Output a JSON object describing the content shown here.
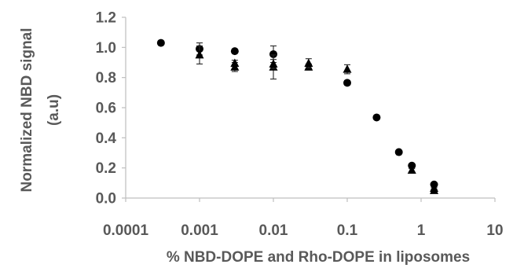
{
  "chart_data": {
    "type": "scatter",
    "title": "",
    "xlabel": "% NBD-DOPE and Rho-DOPE in liposomes",
    "ylabel_lines": [
      "Normalized NBD signal",
      "(a.u)"
    ],
    "xscale": "log",
    "xlim": [
      0.0001,
      10
    ],
    "ylim": [
      0,
      1.2
    ],
    "x_tick_values": [
      0.0001,
      0.001,
      0.01,
      0.1,
      1,
      10
    ],
    "x_tick_labels": [
      "0.0001",
      "0.001",
      "0.01",
      "0.1",
      "1",
      "10"
    ],
    "y_tick_values": [
      0,
      0.2,
      0.4,
      0.6,
      0.8,
      1.0,
      1.2
    ],
    "y_tick_labels": [
      "0.0",
      "0.2",
      "0.4",
      "0.6",
      "0.8",
      "1.0",
      "1.2"
    ],
    "grid": false,
    "legend": "none",
    "series": [
      {
        "marker": "circle",
        "color": "#000000",
        "points": [
          {
            "x": 0.0003,
            "y": 1.03,
            "err": 0.0
          },
          {
            "x": 0.001,
            "y": 0.99,
            "err": 0.04
          },
          {
            "x": 0.003,
            "y": 0.975,
            "err": 0.01
          },
          {
            "x": 0.01,
            "y": 0.955,
            "err": 0.055
          },
          {
            "x": 0.1,
            "y": 0.765,
            "err": 0.015
          },
          {
            "x": 0.25,
            "y": 0.535,
            "err": 0.0
          },
          {
            "x": 0.5,
            "y": 0.305,
            "err": 0.0
          },
          {
            "x": 0.75,
            "y": 0.215,
            "err": 0.01
          },
          {
            "x": 1.5,
            "y": 0.09,
            "err": 0.01
          }
        ]
      },
      {
        "marker": "triangle",
        "color": "#000000",
        "points": [
          {
            "x": 0.001,
            "y": 0.95,
            "err": 0.06
          },
          {
            "x": 0.003,
            "y": 0.87,
            "err": 0.03
          },
          {
            "x": 0.003,
            "y": 0.895,
            "err": 0.02
          },
          {
            "x": 0.01,
            "y": 0.87,
            "err": 0.08
          },
          {
            "x": 0.01,
            "y": 0.89,
            "err": 0.03
          },
          {
            "x": 0.03,
            "y": 0.87,
            "err": 0.02
          },
          {
            "x": 0.03,
            "y": 0.895,
            "err": 0.03
          },
          {
            "x": 0.1,
            "y": 0.855,
            "err": 0.03
          },
          {
            "x": 0.75,
            "y": 0.185,
            "err": 0.01
          },
          {
            "x": 1.5,
            "y": 0.05,
            "err": 0.01
          },
          {
            "x": 1.5,
            "y": 0.065,
            "err": 0.005
          }
        ]
      }
    ]
  }
}
